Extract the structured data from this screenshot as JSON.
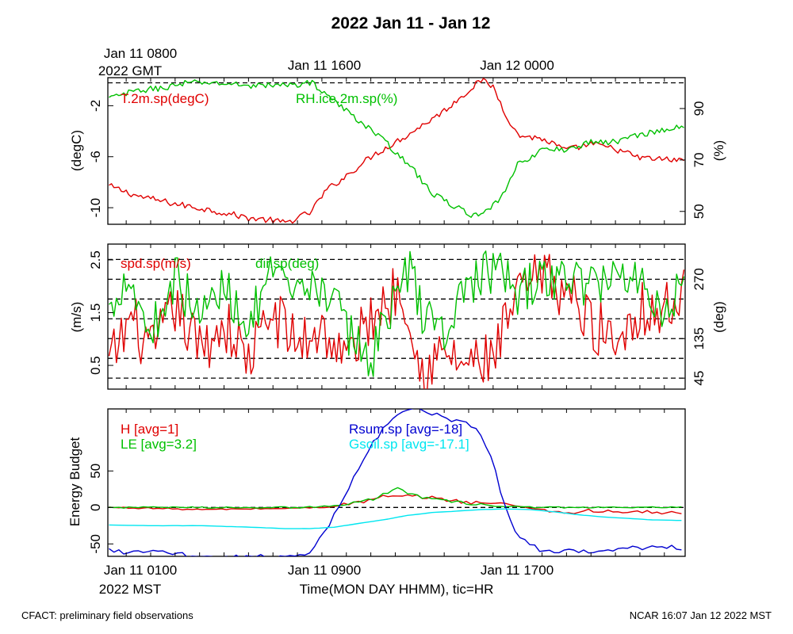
{
  "page": {
    "title": "2022 Jan 11 - Jan 12",
    "footer_left": "CFACT: preliminary field observations",
    "footer_right": "NCAR 16:07 Jan 12 2022 MST"
  },
  "time_axis": {
    "top_labels": [
      "Jan 11 0800",
      "Jan 11 1600",
      "Jan 12 0000"
    ],
    "top_zone": "2022 GMT",
    "bottom_labels": [
      "Jan 11 0100",
      "Jan 11 0900",
      "Jan 11 1700"
    ],
    "bottom_zone": "2022 MST",
    "xlabel": "Time(MON DAY HHMM), tic=HR"
  },
  "colors": {
    "red": "#e00000",
    "green": "#00c000",
    "blue": "#0000d0",
    "cyan": "#00e6f0",
    "black": "#000000"
  },
  "chart_data": [
    {
      "type": "line",
      "panel": "temperature-humidity",
      "x_unit": "hours since Jan 11 0000 MST",
      "xlim": [
        0.25,
        23.85
      ],
      "ylabel": "(degC)",
      "ylabel_right": "(%)",
      "ylim": [
        -11.3,
        0.2
      ],
      "yticks": [
        -10,
        -6,
        -2
      ],
      "ylim_right": [
        45,
        102
      ],
      "yticks_right": [
        50,
        70,
        90
      ],
      "hlines_right": [
        100
      ],
      "series": [
        {
          "name": "T.2m.sp(degC)",
          "axis": "left",
          "color": "red",
          "x": [
            0.3,
            1.5,
            3.0,
            4.5,
            6.0,
            7.0,
            7.5,
            8.5,
            9.2,
            10.0,
            11.0,
            12.5,
            14.0,
            15.0,
            15.5,
            16.0,
            16.5,
            17.0,
            18.0,
            19.0,
            20.0,
            21.0,
            22.0,
            23.8
          ],
          "values": [
            -8.3,
            -9.1,
            -9.7,
            -10.2,
            -10.8,
            -11.0,
            -11.2,
            -10.4,
            -8.6,
            -7.5,
            -6.0,
            -4.3,
            -2.4,
            -0.8,
            0.0,
            -0.5,
            -2.6,
            -4.3,
            -4.6,
            -5.5,
            -5.0,
            -5.4,
            -6.1,
            -6.3
          ]
        },
        {
          "name": "RH.ice.2m.sp(%)",
          "axis": "right",
          "color": "green",
          "x": [
            0.3,
            1.5,
            2.5,
            3.5,
            4.5,
            6.0,
            7.5,
            8.6,
            9.0,
            10.0,
            11.0,
            12.5,
            13.5,
            15.0,
            15.5,
            16.0,
            16.5,
            17.0,
            18.0,
            19.0,
            20.0,
            21.0,
            22.0,
            23.8
          ],
          "values": [
            94,
            97,
            98,
            100,
            100,
            99,
            99,
            100,
            97,
            89,
            82,
            69,
            57,
            49,
            48,
            52,
            58,
            68,
            74,
            74,
            77,
            77,
            80,
            83
          ]
        }
      ]
    },
    {
      "type": "line",
      "panel": "wind",
      "x_unit": "hours since Jan 11 0000 MST",
      "xlim": [
        0.25,
        23.85
      ],
      "ylabel": "(m/s)",
      "ylabel_right": "(deg)",
      "ylim": [
        0.05,
        2.8
      ],
      "yticks": [
        0.5,
        1.5,
        2.5
      ],
      "ylim_right": [
        20,
        350
      ],
      "yticks_right": [
        45,
        135,
        270
      ],
      "hlines_right": [
        45,
        90,
        135,
        180,
        225,
        270,
        315
      ],
      "series": [
        {
          "name": "spd.sp(m/s)",
          "axis": "left",
          "color": "red",
          "x": [
            0.3,
            1.2,
            2.0,
            3.0,
            4.0,
            5.0,
            6.0,
            7.0,
            8.0,
            9.0,
            10.0,
            11.0,
            12.0,
            12.5,
            13.0,
            14.0,
            15.0,
            16.0,
            17.0,
            18.0,
            19.0,
            20.0,
            21.0,
            22.0,
            23.0,
            23.8
          ],
          "values": [
            0.5,
            1.4,
            0.7,
            1.6,
            0.8,
            1.3,
            0.6,
            1.5,
            0.9,
            1.2,
            0.6,
            1.4,
            1.9,
            1.8,
            0.4,
            0.7,
            0.5,
            0.6,
            1.8,
            2.2,
            1.9,
            1.3,
            1.0,
            1.6,
            1.5,
            1.9
          ]
        },
        {
          "name": "dir.sp(deg)",
          "axis": "left",
          "color": "green",
          "x": [
            0.3,
            1.0,
            2.0,
            3.0,
            4.0,
            5.0,
            6.0,
            7.0,
            8.0,
            9.0,
            10.0,
            11.0,
            12.0,
            12.7,
            13.0,
            14.0,
            15.0,
            16.0,
            17.0,
            18.0,
            19.0,
            20.0,
            21.0,
            22.0,
            23.0,
            23.8
          ],
          "values": [
            1.5,
            2.3,
            1.1,
            2.2,
            1.4,
            2.0,
            1.3,
            2.2,
            1.7,
            2.1,
            1.2,
            0.6,
            1.9,
            2.3,
            1.6,
            1.1,
            2.1,
            2.3,
            1.9,
            2.1,
            2.2,
            2.0,
            2.3,
            2.1,
            1.6,
            2.0
          ]
        }
      ]
    },
    {
      "type": "line",
      "panel": "energy-budget",
      "x_unit": "hours since Jan 11 0000 MST",
      "xlim": [
        0.25,
        23.85
      ],
      "ylabel": "Energy Budget",
      "ylim": [
        -67,
        135
      ],
      "yticks": [
        -50,
        0,
        50
      ],
      "hlines": [
        0
      ],
      "series": [
        {
          "name": "H [avg=1]",
          "color": "red",
          "x": [
            0.3,
            2.0,
            4.0,
            6.0,
            8.0,
            9.0,
            10.0,
            10.5,
            11.0,
            11.5,
            12.0,
            12.5,
            13.0,
            14.0,
            15.0,
            16.0,
            17.0,
            18.0,
            19.0,
            20.0,
            21.0,
            22.0,
            23.0,
            23.8
          ],
          "values": [
            0,
            -1,
            -3,
            -2,
            -1,
            0,
            4,
            7,
            10,
            15,
            14,
            15,
            15,
            11,
            7,
            6,
            2,
            -3,
            -8,
            -4,
            -7,
            -6,
            -7,
            -9
          ]
        },
        {
          "name": "LE [avg=3.2]",
          "color": "green",
          "x": [
            0.3,
            2.0,
            4.0,
            6.0,
            8.0,
            9.0,
            10.0,
            11.0,
            11.5,
            12.0,
            12.5,
            13.0,
            14.0,
            15.0,
            16.0,
            17.0,
            18.0,
            20.0,
            22.0,
            23.8
          ],
          "values": [
            0,
            0,
            0,
            0,
            0,
            1,
            5,
            10,
            18,
            27,
            20,
            15,
            9,
            5,
            2,
            1,
            0,
            0,
            0,
            0
          ]
        },
        {
          "name": "Rsum.sp [avg=-18]",
          "color": "blue",
          "x": [
            0.3,
            1.0,
            2.0,
            3.0,
            4.0,
            5.0,
            6.0,
            7.0,
            7.5,
            8.0,
            8.5,
            9.0,
            9.5,
            10.0,
            10.5,
            11.0,
            11.5,
            12.0,
            12.5,
            13.0,
            13.5,
            14.0,
            14.5,
            15.0,
            15.5,
            16.0,
            16.5,
            17.0,
            18.0,
            19.0,
            20.0,
            21.0,
            22.0,
            23.0,
            23.8
          ],
          "values": [
            -58,
            -62,
            -60,
            -64,
            -67,
            -67,
            -67,
            -67,
            -67,
            -66,
            -62,
            -40,
            -10,
            20,
            55,
            85,
            108,
            123,
            133,
            137,
            130,
            122,
            118,
            113,
            100,
            60,
            0,
            -40,
            -60,
            -60,
            -62,
            -56,
            -55,
            -53,
            -58
          ]
        },
        {
          "name": "Gsoil.sp [avg=-17.1]",
          "color": "cyan",
          "x": [
            0.3,
            2.0,
            4.0,
            6.0,
            7.5,
            8.5,
            9.5,
            10.5,
            11.5,
            12.5,
            13.5,
            14.5,
            15.5,
            16.5,
            17.5,
            18.5,
            19.5,
            20.5,
            21.5,
            22.5,
            23.8
          ],
          "values": [
            -24,
            -25,
            -25,
            -27,
            -29,
            -29,
            -27,
            -22,
            -17,
            -11,
            -7,
            -5,
            -3,
            -2,
            -3,
            -6,
            -10,
            -13,
            -15,
            -17,
            -18
          ]
        }
      ]
    }
  ]
}
